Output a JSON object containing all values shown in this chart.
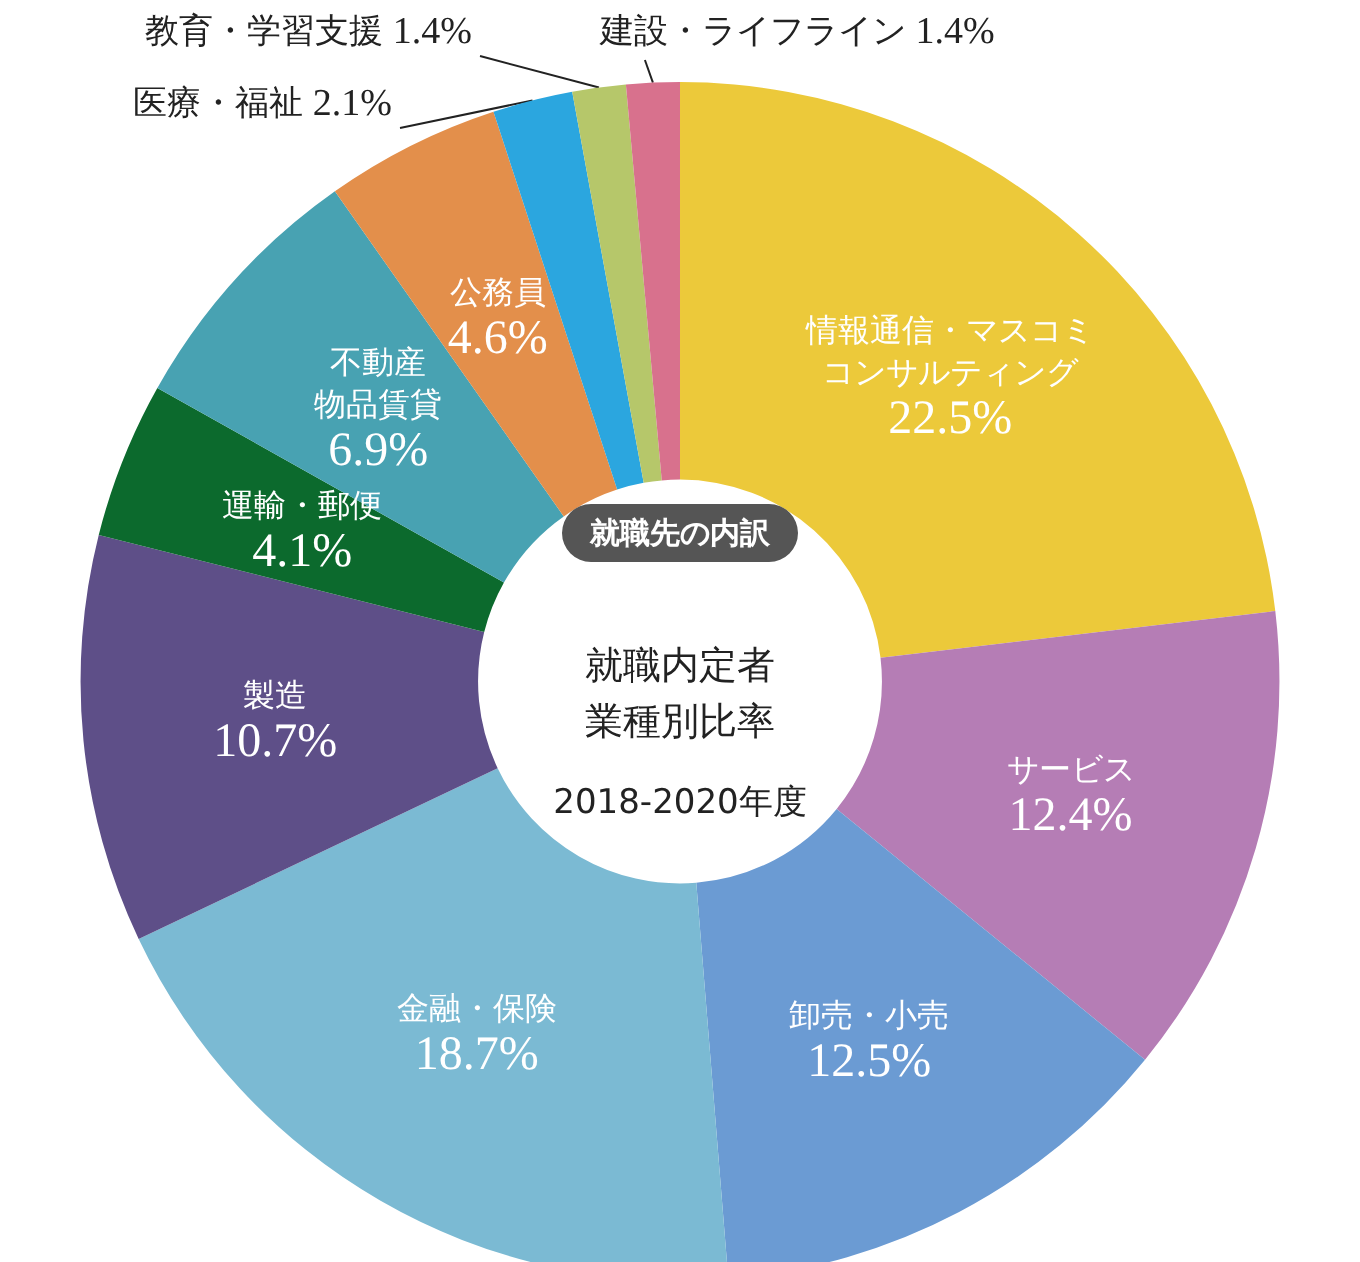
{
  "chart_data": {
    "type": "donut",
    "title": "就職先の内訳",
    "subtitle": "就職内定者業種別比率",
    "annotations": [
      "2018-2020年度"
    ],
    "categories": [
      "情報通信・マスコミコンサルティング",
      "サービス",
      "卸売・小売",
      "金融・保険",
      "製造",
      "運輸・郵便",
      "不動産物品賃貸",
      "公務員",
      "医療・福祉",
      "教育・学習支援",
      "建設・ライフライン"
    ],
    "values": [
      22.5,
      12.4,
      12.5,
      18.7,
      10.7,
      4.1,
      6.9,
      4.6,
      2.1,
      1.4,
      1.4
    ],
    "value_labels": [
      "22.5%",
      "12.4%",
      "12.5%",
      "18.7%",
      "10.7%",
      "4.1%",
      "6.9%",
      "4.6%",
      "2.1%",
      "1.4%",
      "1.4%"
    ],
    "colors": [
      "#ecc93a",
      "#b57db5",
      "#6b9bd3",
      "#7bbad3",
      "#5e4f88",
      "#0c6a2d",
      "#48a2b2",
      "#e38f4b",
      "#2ba6df",
      "#b6c76a",
      "#d8718d"
    ],
    "legend": false
  }
}
